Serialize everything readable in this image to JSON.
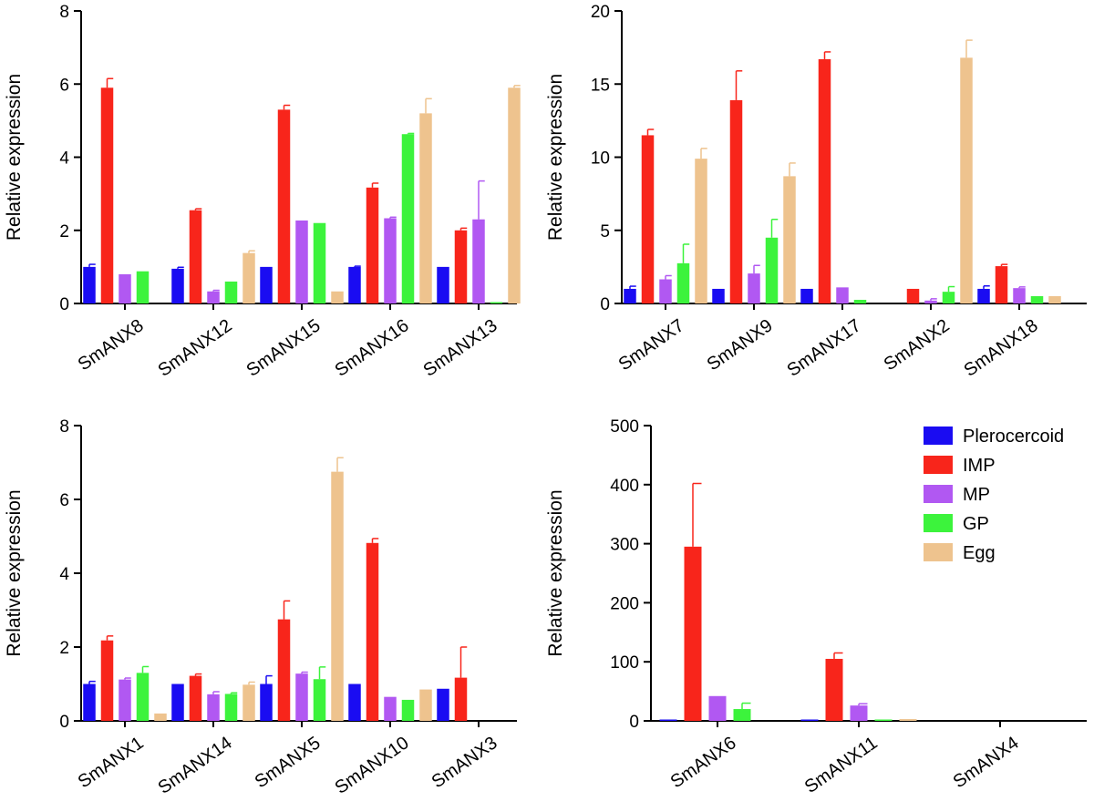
{
  "colors": {
    "Plerocercoid": "#1a0cf2",
    "IMP": "#f8251b",
    "MP": "#b158f2",
    "GP": "#3cf33c",
    "Egg": "#eec38e"
  },
  "legend": [
    "Plerocercoid",
    "IMP",
    "MP",
    "GP",
    "Egg"
  ],
  "chart_data": [
    {
      "type": "bar",
      "panel": "top-left",
      "ylabel": "Relative expression",
      "ylim": [
        0,
        8
      ],
      "yticks": [
        0,
        2,
        4,
        6,
        8
      ],
      "categories": [
        "SmANX8",
        "SmANX12",
        "SmANX15",
        "SmANX16",
        "SmANX13"
      ],
      "series": [
        {
          "name": "Plerocercoid",
          "values": [
            1.0,
            0.95,
            1.0,
            1.0,
            1.0
          ],
          "errors": [
            0.07,
            0.04,
            0,
            0.02,
            0
          ]
        },
        {
          "name": "IMP",
          "values": [
            5.9,
            2.55,
            5.3,
            3.17,
            2.0
          ],
          "errors": [
            0.25,
            0.04,
            0.12,
            0.12,
            0.06
          ]
        },
        {
          "name": "MP",
          "values": [
            0.8,
            0.33,
            2.27,
            2.33,
            2.3
          ],
          "errors": [
            0,
            0.03,
            0,
            0.03,
            1.05
          ]
        },
        {
          "name": "GP",
          "values": [
            0.88,
            0.6,
            2.2,
            4.63,
            0.03
          ],
          "errors": [
            0,
            0,
            0,
            0.02,
            0
          ]
        },
        {
          "name": "Egg",
          "values": [
            0,
            1.38,
            0.33,
            5.2,
            5.9
          ],
          "errors": [
            0,
            0.06,
            0,
            0.4,
            0.06
          ]
        }
      ]
    },
    {
      "type": "bar",
      "panel": "top-right",
      "ylabel": "Relative expression",
      "ylim": [
        0,
        20
      ],
      "yticks": [
        0,
        5,
        10,
        15,
        20
      ],
      "categories": [
        "SmANX7",
        "SmANX9",
        "SmANX17",
        "SmANX2",
        "SmANX18"
      ],
      "series": [
        {
          "name": "Plerocercoid",
          "values": [
            1.0,
            1.0,
            1.0,
            0,
            1.0
          ],
          "errors": [
            0.18,
            0,
            0,
            0,
            0.2
          ]
        },
        {
          "name": "IMP",
          "values": [
            11.5,
            13.9,
            16.7,
            1.0,
            2.55
          ],
          "errors": [
            0.4,
            2.0,
            0.5,
            0,
            0.12
          ]
        },
        {
          "name": "MP",
          "values": [
            1.65,
            2.05,
            1.1,
            0.2,
            1.05
          ],
          "errors": [
            0.25,
            0.55,
            0,
            0.12,
            0.08
          ]
        },
        {
          "name": "GP",
          "values": [
            2.75,
            4.5,
            0.25,
            0.8,
            0.5
          ],
          "errors": [
            1.3,
            1.25,
            0,
            0.35,
            0
          ]
        },
        {
          "name": "Egg",
          "values": [
            9.9,
            8.7,
            0,
            16.8,
            0.5
          ],
          "errors": [
            0.7,
            0.9,
            0,
            1.2,
            0
          ]
        }
      ]
    },
    {
      "type": "bar",
      "panel": "bottom-left",
      "ylabel": "Relative expression",
      "ylim": [
        0,
        8
      ],
      "yticks": [
        0,
        2,
        4,
        6,
        8
      ],
      "categories": [
        "SmANX1",
        "SmANX14",
        "SmANX5",
        "SmANX10",
        "SmANX3"
      ],
      "series": [
        {
          "name": "Plerocercoid",
          "values": [
            1.0,
            1.0,
            1.0,
            1.0,
            0.87
          ],
          "errors": [
            0.07,
            0,
            0.22,
            0,
            0
          ]
        },
        {
          "name": "IMP",
          "values": [
            2.18,
            1.22,
            2.75,
            4.82,
            1.17
          ],
          "errors": [
            0.12,
            0.05,
            0.5,
            0.12,
            0.83
          ]
        },
        {
          "name": "MP",
          "values": [
            1.12,
            0.72,
            1.28,
            0.65,
            0
          ],
          "errors": [
            0.04,
            0.07,
            0.04,
            0,
            0
          ]
        },
        {
          "name": "GP",
          "values": [
            1.3,
            0.73,
            1.13,
            0.57,
            0
          ],
          "errors": [
            0.17,
            0.03,
            0.33,
            0,
            0
          ]
        },
        {
          "name": "Egg",
          "values": [
            0.2,
            0.98,
            6.75,
            0.85,
            0
          ],
          "errors": [
            0,
            0.07,
            0.38,
            0,
            0
          ]
        }
      ]
    },
    {
      "type": "bar",
      "panel": "bottom-right",
      "ylabel": "Relative expression",
      "ylim": [
        0,
        500
      ],
      "yticks": [
        0,
        100,
        200,
        300,
        400,
        500
      ],
      "categories": [
        "SmANX6",
        "SmANX11",
        "SmANX4"
      ],
      "series": [
        {
          "name": "Plerocercoid",
          "values": [
            1.0,
            1.0,
            0
          ],
          "errors": [
            0,
            0,
            0
          ]
        },
        {
          "name": "IMP",
          "values": [
            295,
            105,
            0
          ],
          "errors": [
            107,
            10,
            0
          ]
        },
        {
          "name": "MP",
          "values": [
            42,
            26,
            0
          ],
          "errors": [
            0,
            3,
            0
          ]
        },
        {
          "name": "GP",
          "values": [
            20,
            2,
            0
          ],
          "errors": [
            10,
            0,
            0
          ]
        },
        {
          "name": "Egg",
          "values": [
            0,
            3,
            0
          ],
          "errors": [
            0,
            0,
            0
          ]
        }
      ]
    }
  ]
}
